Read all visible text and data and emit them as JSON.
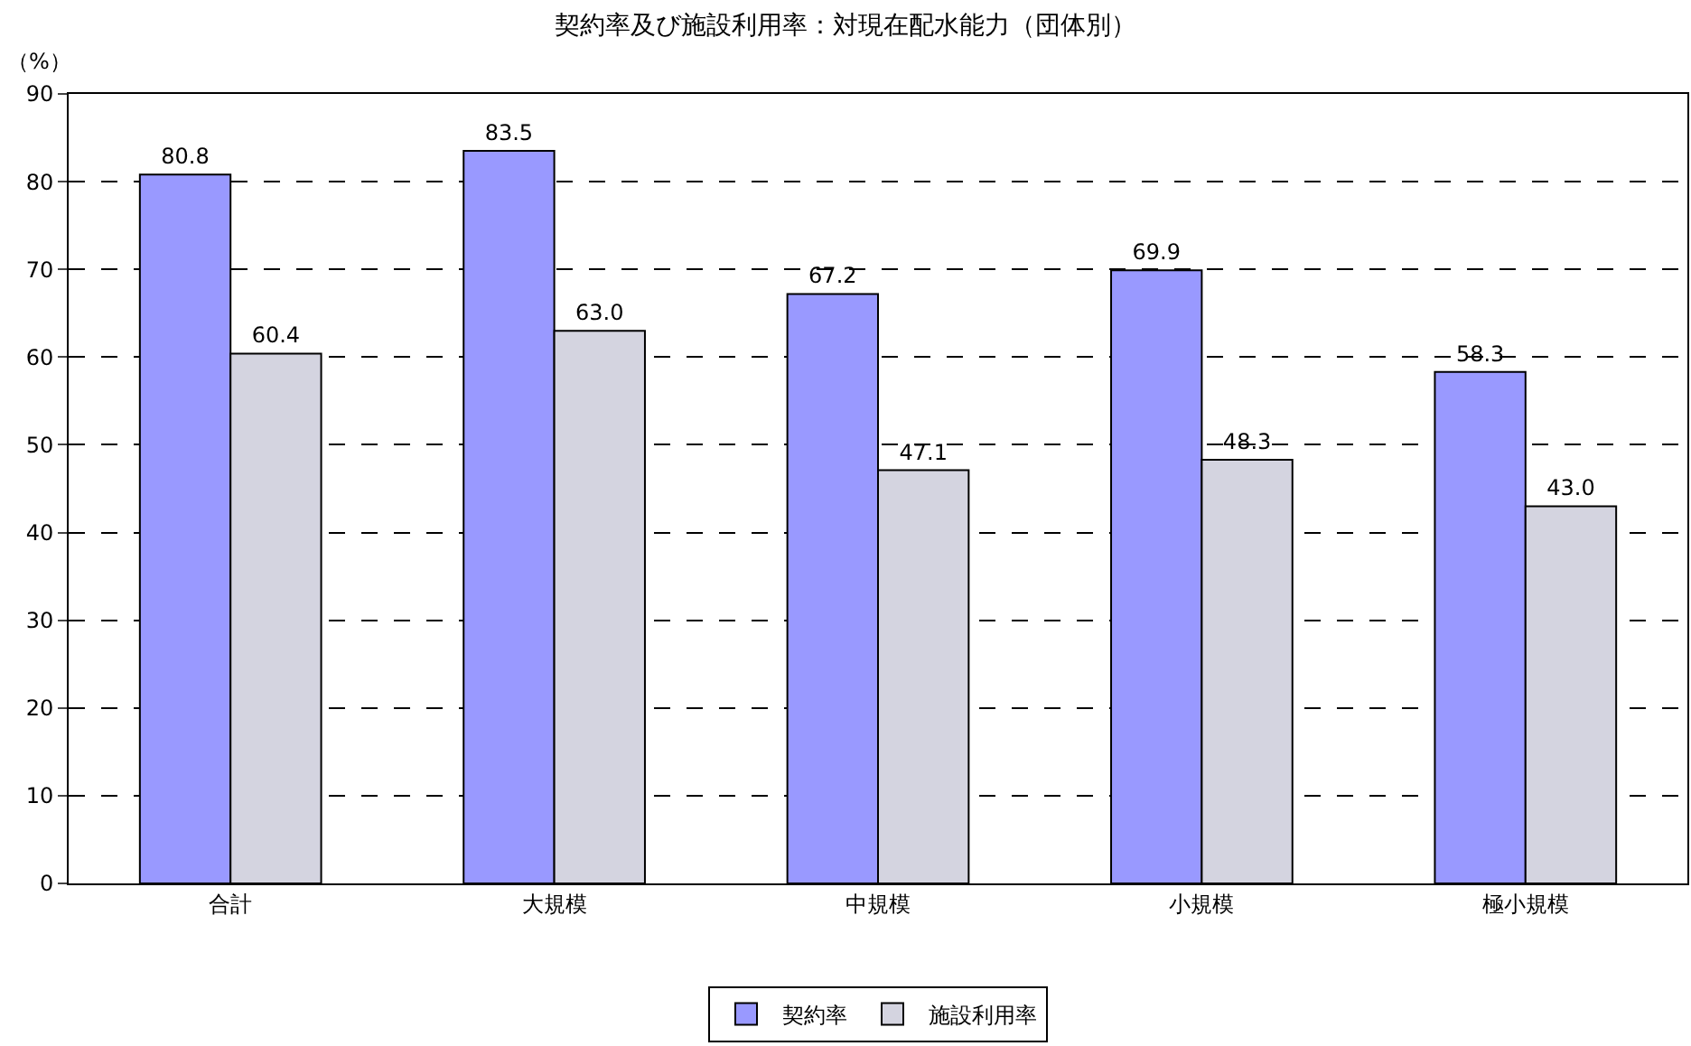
{
  "chart_data": {
    "type": "bar",
    "title": "契約率及び施設利用率：対現在配水能力（団体別）",
    "ylabel": "（%）",
    "categories": [
      "合計",
      "大規模",
      "中規模",
      "小規模",
      "極小規模"
    ],
    "series": [
      {
        "name": "契約率",
        "color": "#9999ff",
        "values": [
          80.8,
          83.5,
          67.2,
          69.9,
          58.3
        ],
        "value_labels": [
          "80.8",
          "83.5",
          "67.2",
          "69.9",
          "58.3"
        ]
      },
      {
        "name": "施設利用率",
        "color": "#d4d4e0",
        "values": [
          60.4,
          63.0,
          47.1,
          48.3,
          43.0
        ],
        "value_labels": [
          "60.4",
          "63.0",
          "47.1",
          "48.3",
          "43.0"
        ]
      }
    ],
    "ylim": [
      0,
      90
    ],
    "yticks": [
      0,
      10,
      20,
      30,
      40,
      50,
      60,
      70,
      80,
      90
    ],
    "grid": "y",
    "legend": "bottom"
  }
}
